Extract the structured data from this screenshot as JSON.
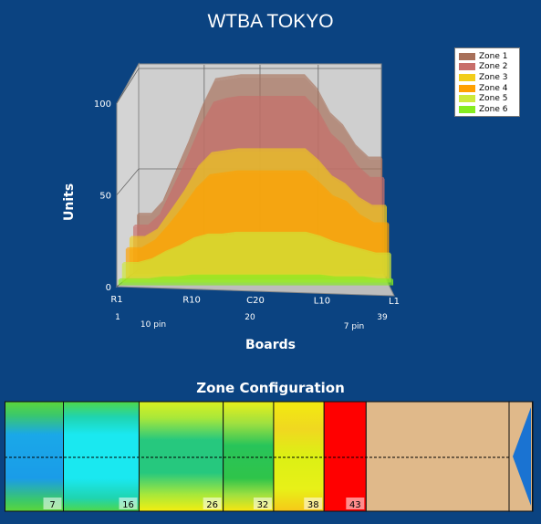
{
  "title": "WTBA TOKYO",
  "chart_data": {
    "type": "area",
    "title": "WTBA TOKYO",
    "xlabel": "Boards",
    "ylabel": "Units",
    "ylim": [
      0,
      100
    ],
    "yticks": [
      "0",
      "50",
      "100"
    ],
    "xticks": [
      "R1",
      "R10",
      "C20",
      "L10",
      "L1"
    ],
    "xticks_numeric": [
      "1",
      "20",
      "39"
    ],
    "pin_labels": [
      "10 pin",
      "7 pin"
    ],
    "boards": [
      1,
      3,
      5,
      7,
      9,
      11,
      13,
      15,
      17,
      19,
      21,
      23,
      25,
      27,
      29,
      31,
      33,
      35,
      37,
      39
    ],
    "series": [
      {
        "name": "Zone 1",
        "color": "#a8705a",
        "values": [
          28,
          28,
          35,
          50,
          65,
          82,
          95,
          96,
          97,
          97,
          97,
          97,
          97,
          97,
          90,
          78,
          72,
          62,
          56,
          56
        ]
      },
      {
        "name": "Zone 2",
        "color": "#c86e6a",
        "values": [
          24,
          24,
          30,
          44,
          58,
          74,
          86,
          88,
          89,
          89,
          89,
          89,
          89,
          89,
          82,
          70,
          64,
          54,
          48,
          48
        ]
      },
      {
        "name": "Zone 3",
        "color": "#f2cd1a",
        "values": [
          20,
          20,
          24,
          34,
          44,
          56,
          63,
          64,
          65,
          65,
          65,
          65,
          65,
          65,
          59,
          51,
          47,
          40,
          36,
          36
        ]
      },
      {
        "name": "Zone 4",
        "color": "#ffa000",
        "values": [
          16,
          16,
          20,
          28,
          37,
          47,
          54,
          55,
          56,
          56,
          56,
          56,
          56,
          56,
          50,
          43,
          40,
          33,
          29,
          29
        ]
      },
      {
        "name": "Zone 5",
        "color": "#cdea3a",
        "values": [
          10,
          10,
          12,
          16,
          19,
          23,
          25,
          25,
          26,
          26,
          26,
          26,
          26,
          26,
          24,
          21,
          19,
          17,
          15,
          15
        ]
      },
      {
        "name": "Zone 6",
        "color": "#86ec1e",
        "values": [
          3,
          3,
          3,
          4,
          4,
          5,
          5,
          5,
          5,
          5,
          5,
          5,
          5,
          5,
          5,
          4,
          4,
          4,
          3,
          3
        ]
      }
    ],
    "grid": true,
    "legend_position": "top-right"
  },
  "zone_config": {
    "title": "Zone Configuration",
    "zones": [
      {
        "end_label": "7",
        "boundary": 7
      },
      {
        "end_label": "16",
        "boundary": 16
      },
      {
        "end_label": "26",
        "boundary": 26
      },
      {
        "end_label": "32",
        "boundary": 32
      },
      {
        "end_label": "38",
        "boundary": 38
      },
      {
        "end_label": "43",
        "boundary": 43
      }
    ],
    "lane_color": "#e0b98a",
    "pin_deck_color": "#1a73d2"
  }
}
